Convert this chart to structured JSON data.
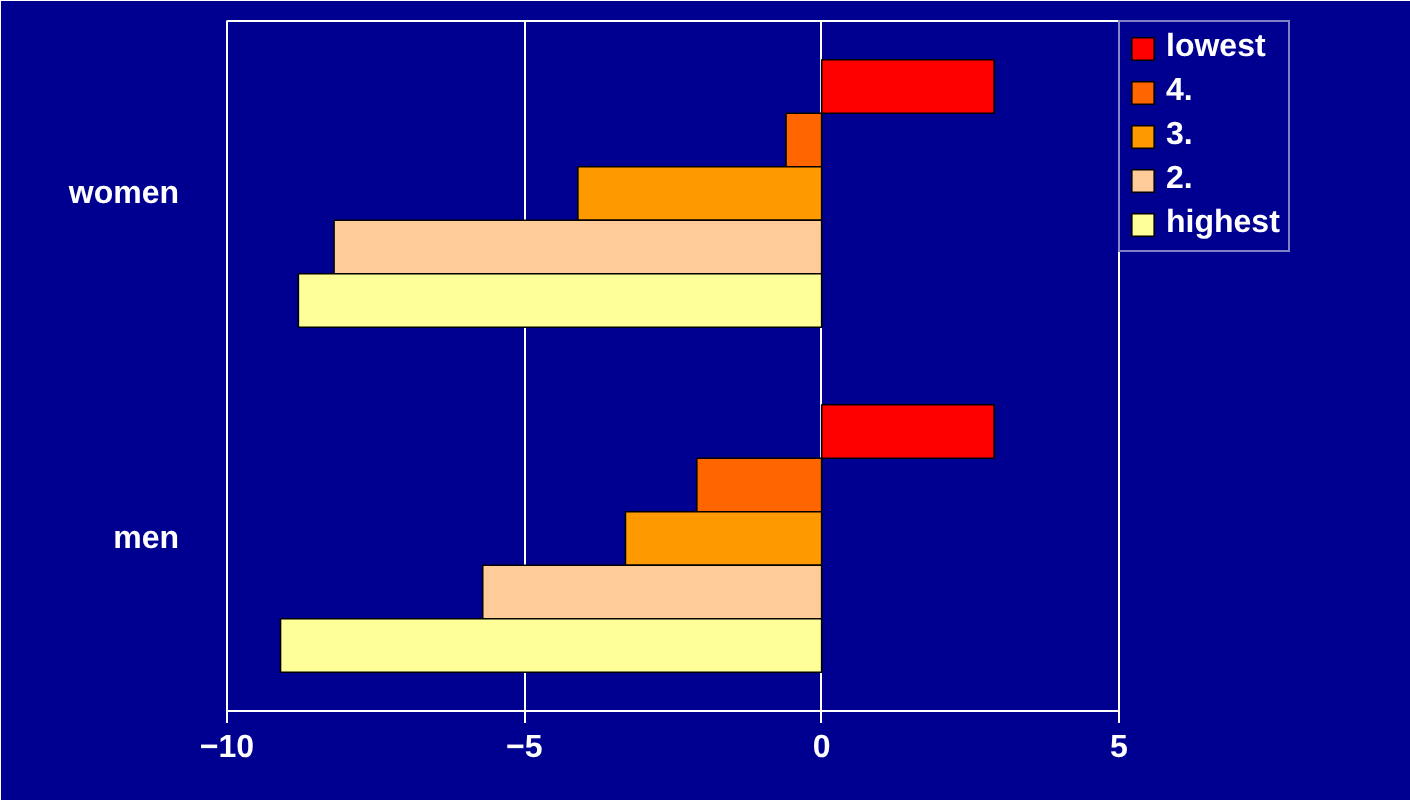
{
  "chart_data": {
    "type": "bar",
    "orientation": "horizontal",
    "categories": [
      "women",
      "men"
    ],
    "series": [
      {
        "name": "lowest",
        "color": "#ff0000",
        "values": [
          2.9,
          2.9
        ]
      },
      {
        "name": "4.",
        "color": "#ff6600",
        "values": [
          -0.6,
          -2.1
        ]
      },
      {
        "name": "3.",
        "color": "#ff9900",
        "values": [
          -4.1,
          -3.3
        ]
      },
      {
        "name": "2.",
        "color": "#ffcc99",
        "values": [
          -8.2,
          -5.7
        ]
      },
      {
        "name": "highest",
        "color": "#ffff99",
        "values": [
          -8.8,
          -9.1
        ]
      }
    ],
    "xlim": [
      -10,
      5
    ],
    "xticks": [
      -10,
      -5,
      0,
      5
    ],
    "grid": "x",
    "legend": "right"
  }
}
